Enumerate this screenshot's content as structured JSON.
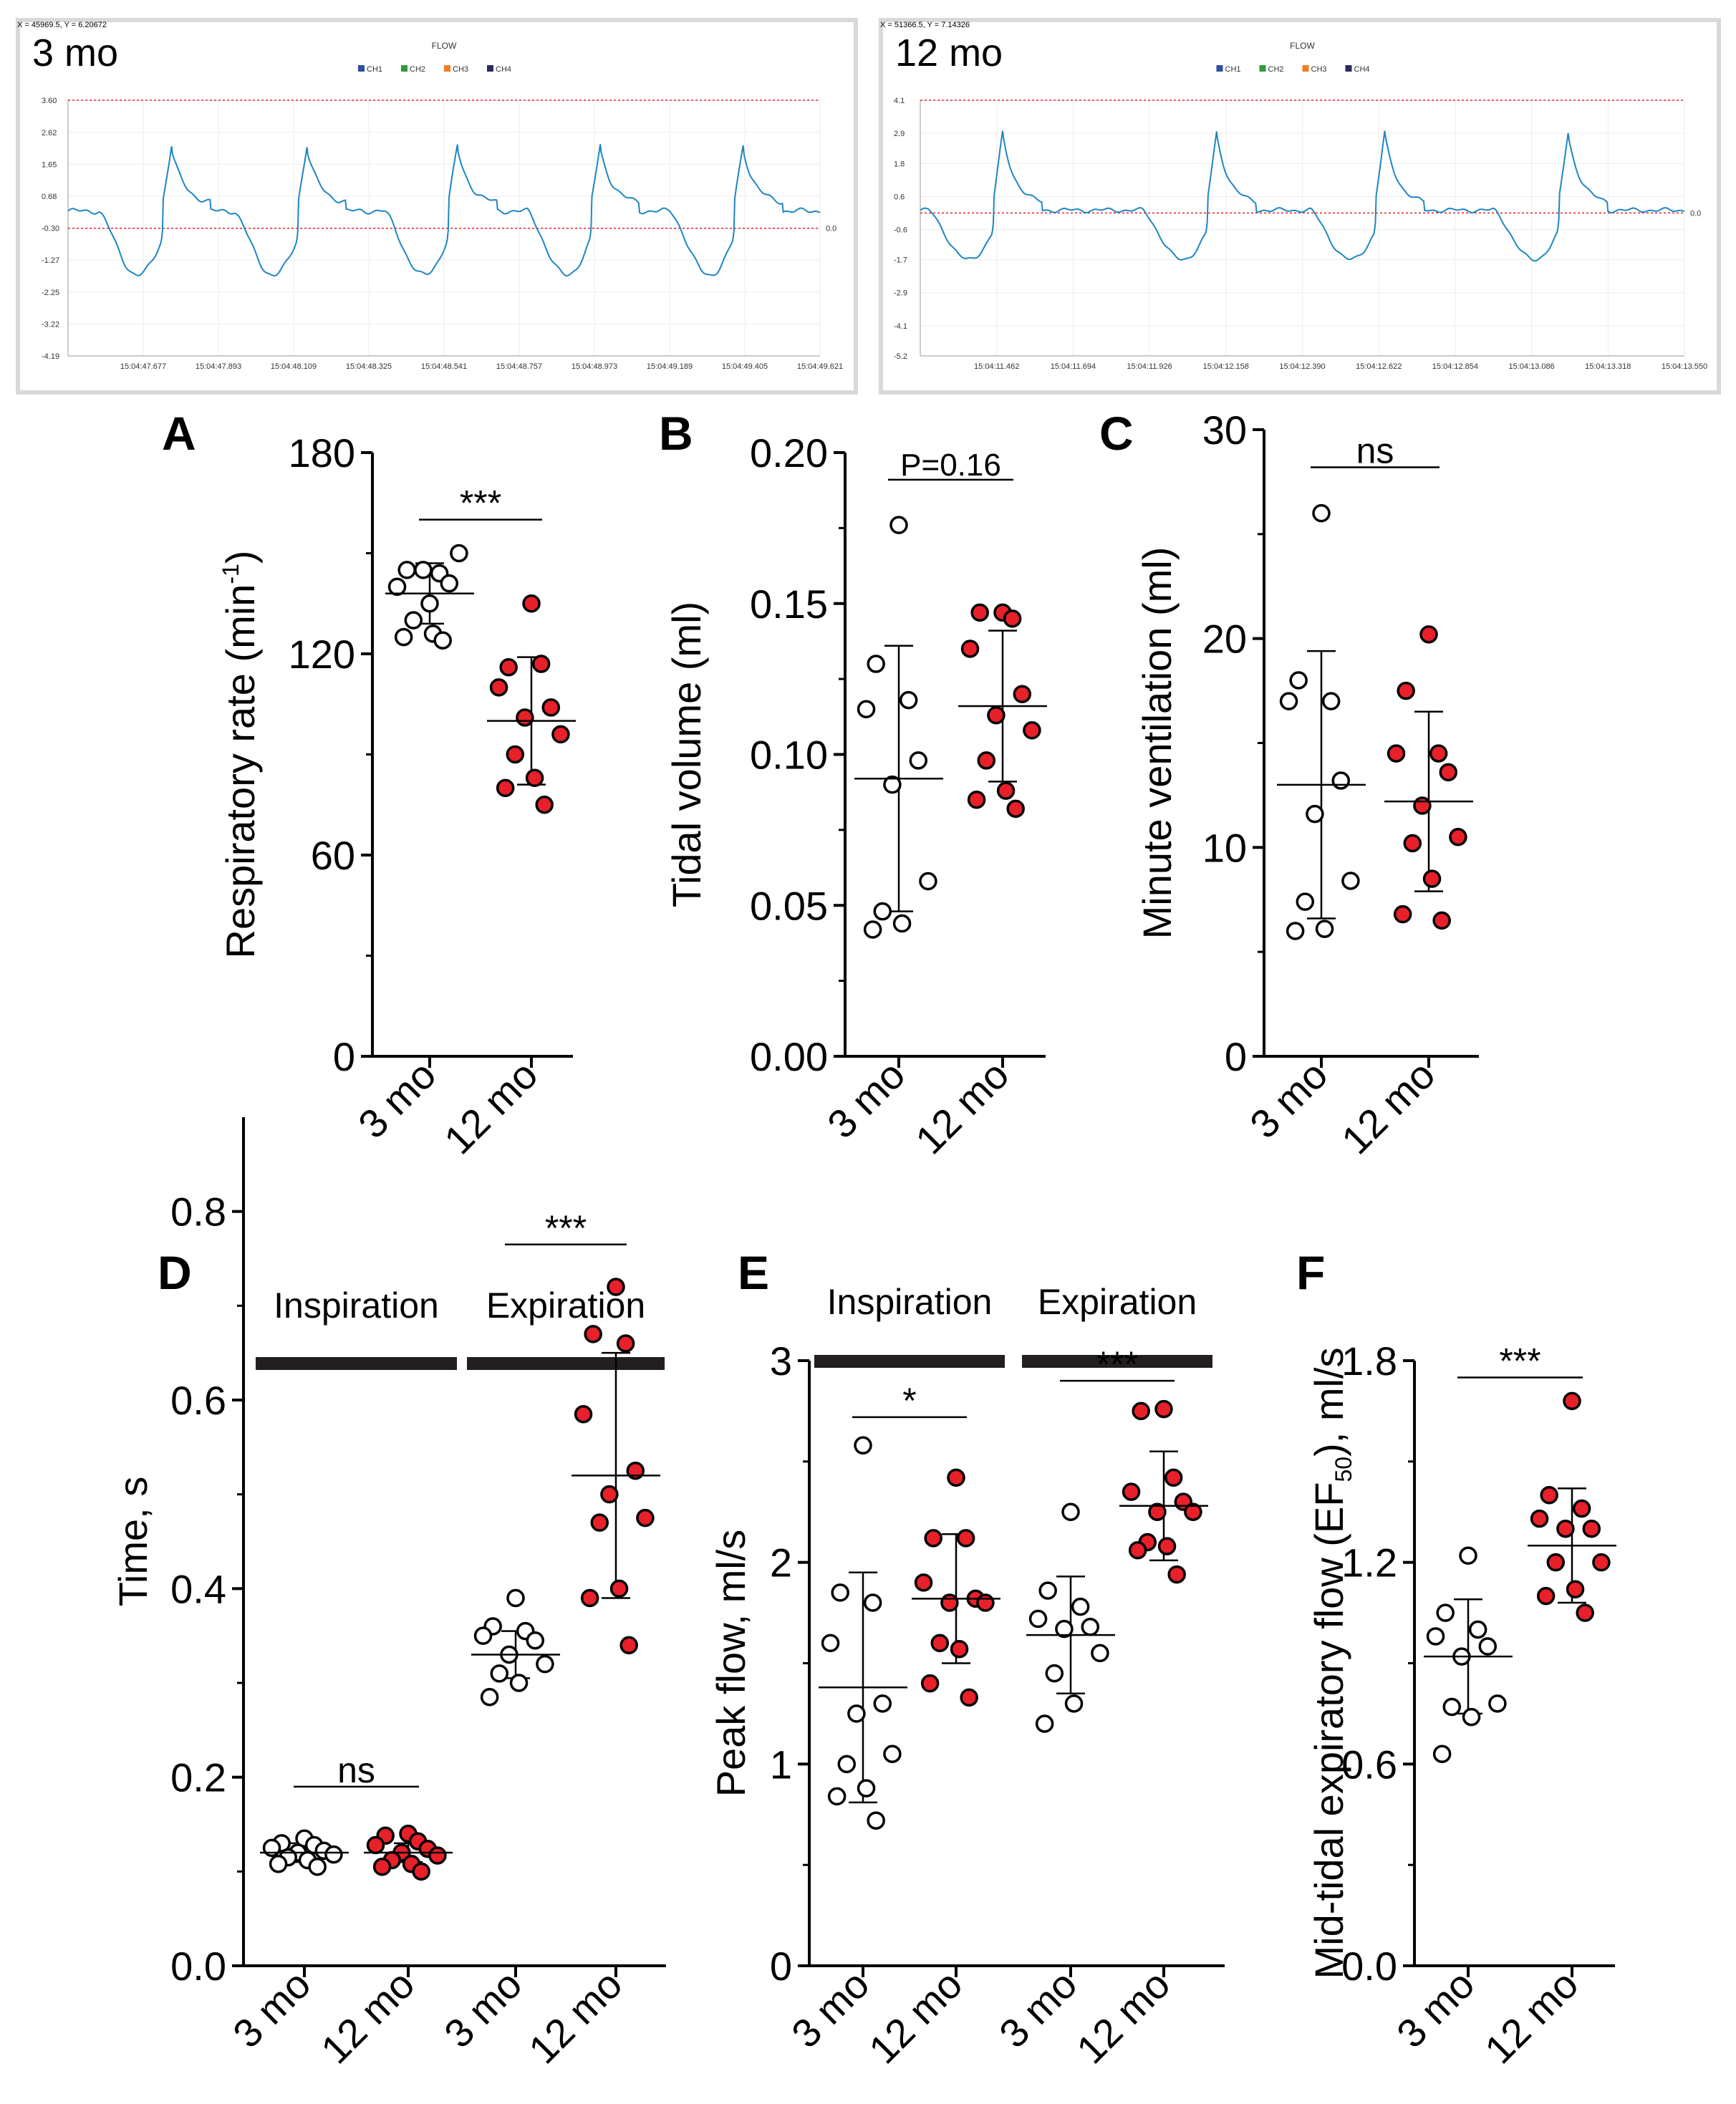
{
  "colors": {
    "red": "#e8202a",
    "trace": "#1f86c3",
    "ref": "#e8202a",
    "axis": "#000000",
    "bar": "#231f20",
    "frame": "#d9d9d9"
  },
  "chart_data": [
    {
      "id": "trace1",
      "type": "line",
      "title": "FLOW",
      "corner_label": "3 mo",
      "readout": "X = 45969.5, Y = 6.20672",
      "legend": [
        "CH1",
        "CH2",
        "CH3",
        "CH4"
      ],
      "legend_colors": [
        "#2d4fa3",
        "#2e9b3c",
        "#f07f22",
        "#2b2b5e"
      ],
      "yticks": [
        "3.60",
        "2.62",
        "1.65",
        "0.68",
        "-0.30",
        "-1.27",
        "-2.25",
        "-3.22",
        "-4.19"
      ],
      "ytick_values": [
        3.6,
        2.62,
        1.65,
        0.68,
        -0.3,
        -1.27,
        -2.25,
        -3.22,
        -4.19
      ],
      "xticks": [
        "15:04:47.677",
        "15:04:47.893",
        "15:04:48.109",
        "15:04:48.325",
        "15:04:48.541",
        "15:04:48.757",
        "15:04:48.973",
        "15:04:49.189",
        "15:04:49.405",
        "15:04:49.621"
      ],
      "ref_lines": [
        3.6,
        -0.3
      ],
      "zero_label": "0.0",
      "ylim": [
        -4.19,
        3.6
      ],
      "breaths": [
        0.13,
        0.31,
        0.51,
        0.7,
        0.89
      ],
      "peak": 1.65,
      "trough": -1.95,
      "baseline": 0.45
    },
    {
      "id": "trace2",
      "type": "line",
      "title": "FLOW",
      "corner_label": "12 mo",
      "readout": "X = 51366.5, Y = 7.14326",
      "legend": [
        "CH1",
        "CH2",
        "CH3",
        "CH4"
      ],
      "legend_colors": [
        "#2d4fa3",
        "#2e9b3c",
        "#f07f22",
        "#2b2b5e"
      ],
      "yticks": [
        "4.1",
        "2.9",
        "1.8",
        "0.6",
        "-0.6",
        "-1.7",
        "-2.9",
        "-4.1",
        "-5.2"
      ],
      "ytick_values": [
        4.1,
        2.9,
        1.8,
        0.6,
        -0.6,
        -1.7,
        -2.9,
        -4.1,
        -5.2
      ],
      "xticks": [
        "15:04:11.462",
        "15:04:11.694",
        "15:04:11.926",
        "15:04:12.158",
        "15:04:12.390",
        "15:04:12.622",
        "15:04:12.854",
        "15:04:13.086",
        "15:04:13.318",
        "15:04:13.550"
      ],
      "ref_lines": [
        4.1,
        0.0
      ],
      "zero_label": "0.0",
      "ylim": [
        -5.2,
        4.1
      ],
      "breaths": [
        0.1,
        0.38,
        0.6,
        0.84
      ],
      "peak": 2.5,
      "trough": -1.8,
      "baseline": 0.2
    },
    {
      "id": "A",
      "type": "scatter",
      "panel": "A",
      "ylabel": "Respiratory rate (min",
      "ylabel_sup": "-1",
      "ylabel_tail": ")",
      "ylim": [
        0,
        180
      ],
      "yticks": [
        0,
        60,
        120,
        180
      ],
      "ytick_labels": [
        "0",
        "60",
        "120",
        "180"
      ],
      "categories": [
        "3 mo",
        "12 mo"
      ],
      "groups": [
        {
          "name": "3 mo",
          "fill": "white",
          "points": [
            135,
            145,
            144,
            140,
            141,
            145,
            150,
            130,
            126,
            125,
            124
          ],
          "mean": 138,
          "sd": 9
        },
        {
          "name": "12 mo",
          "fill": "red",
          "points": [
            135,
            116,
            117,
            110,
            104,
            101,
            96,
            90,
            83,
            80,
            75
          ],
          "mean": 100,
          "sd": 19
        }
      ],
      "sig": [
        {
          "label": "***",
          "from": 0,
          "to": 1,
          "y": 160
        }
      ]
    },
    {
      "id": "B",
      "type": "scatter",
      "panel": "B",
      "ylabel": "Tidal volume (ml)",
      "ylim": [
        0,
        0.2
      ],
      "yticks": [
        0,
        0.05,
        0.1,
        0.15,
        0.2
      ],
      "ytick_labels": [
        "0.00",
        "0.05",
        "0.10",
        "0.15",
        "0.20"
      ],
      "categories": [
        "3 mo",
        "12 mo"
      ],
      "groups": [
        {
          "name": "3 mo",
          "fill": "white",
          "points": [
            0.176,
            0.13,
            0.118,
            0.115,
            0.098,
            0.09,
            0.058,
            0.048,
            0.044,
            0.042
          ],
          "mean": 0.092,
          "sd": 0.044
        },
        {
          "name": "12 mo",
          "fill": "red",
          "points": [
            0.147,
            0.147,
            0.145,
            0.135,
            0.12,
            0.113,
            0.108,
            0.098,
            0.088,
            0.085,
            0.082
          ],
          "mean": 0.116,
          "sd": 0.025
        },
        {
          "name": "",
          "fill": "none",
          "points": [],
          "mean": null,
          "sd": null
        }
      ],
      "sig": [
        {
          "label": "P=0.16",
          "from": 0,
          "to": 1,
          "y": 0.191
        }
      ]
    },
    {
      "id": "C",
      "type": "scatter",
      "panel": "C",
      "ylabel": "Minute ventilation (ml)",
      "ylim": [
        0,
        30
      ],
      "yticks": [
        0,
        10,
        20,
        30
      ],
      "ytick_labels": [
        "0",
        "10",
        "20",
        "30"
      ],
      "categories": [
        "3 mo",
        "12 mo"
      ],
      "groups": [
        {
          "name": "3 mo",
          "fill": "white",
          "points": [
            26,
            18,
            17,
            17,
            13.2,
            11.6,
            8.4,
            7.4,
            6.1,
            6.0
          ],
          "mean": 13.0,
          "sd": 6.4
        },
        {
          "name": "12 mo",
          "fill": "red",
          "points": [
            20.2,
            17.5,
            14.5,
            14.5,
            13.6,
            12.0,
            10.5,
            10.2,
            8.5,
            6.8,
            6.5
          ],
          "mean": 12.2,
          "sd": 4.3
        }
      ],
      "sig": [
        {
          "label": "ns",
          "from": 0,
          "to": 1,
          "y": 28.2
        }
      ]
    },
    {
      "id": "D",
      "type": "scatter",
      "panel": "D",
      "ylabel": "Time, s",
      "ylim": [
        0,
        0.9
      ],
      "yticks": [
        0,
        0.2,
        0.4,
        0.6,
        0.8
      ],
      "ytick_labels": [
        "0.0",
        "0.2",
        "0.4",
        "0.6",
        "0.8"
      ],
      "categories": [
        "3 mo",
        "12 mo",
        "3 mo",
        "12 mo"
      ],
      "bars": [
        {
          "label": "Inspiration",
          "from": 0,
          "to": 1
        },
        {
          "label": "Expiration",
          "from": 2,
          "to": 3
        }
      ],
      "groups": [
        {
          "name": "3 mo",
          "fill": "white",
          "points": [
            0.135,
            0.13,
            0.128,
            0.125,
            0.122,
            0.12,
            0.118,
            0.115,
            0.112,
            0.108,
            0.105
          ],
          "mean": 0.12,
          "sd": 0.01
        },
        {
          "name": "12 mo",
          "fill": "red",
          "points": [
            0.14,
            0.138,
            0.132,
            0.128,
            0.124,
            0.12,
            0.117,
            0.112,
            0.108,
            0.105,
            0.1
          ],
          "mean": 0.12,
          "sd": 0.01
        },
        {
          "name": "3 mo",
          "fill": "white",
          "points": [
            0.39,
            0.36,
            0.355,
            0.35,
            0.345,
            0.33,
            0.32,
            0.31,
            0.3,
            0.285
          ],
          "mean": 0.33,
          "sd": 0.025
        },
        {
          "name": "12 mo",
          "fill": "red",
          "points": [
            0.72,
            0.67,
            0.66,
            0.585,
            0.525,
            0.5,
            0.475,
            0.47,
            0.4,
            0.39,
            0.34
          ],
          "mean": 0.52,
          "sd": 0.13
        }
      ],
      "sig": [
        {
          "label": "ns",
          "from": 0,
          "to": 1,
          "y": 0.19
        },
        {
          "label": "***",
          "from": 2,
          "to": 3,
          "y": 0.765
        }
      ]
    },
    {
      "id": "E",
      "type": "scatter",
      "panel": "E",
      "ylabel": "Peak flow, ml/s",
      "ylim": [
        0,
        3
      ],
      "yticks": [
        0,
        1,
        2,
        3
      ],
      "ytick_labels": [
        "0",
        "1",
        "2",
        "3"
      ],
      "categories": [
        "3 mo",
        "12 mo",
        "3 mo",
        "12 mo"
      ],
      "bars": [
        {
          "label": "Inspiration",
          "from": 0,
          "to": 1
        },
        {
          "label": "Expiration",
          "from": 2,
          "to": 3
        }
      ],
      "groups": [
        {
          "name": "3 mo",
          "fill": "white",
          "points": [
            2.58,
            1.85,
            1.8,
            1.6,
            1.3,
            1.25,
            1.05,
            1.0,
            0.88,
            0.84,
            0.72
          ],
          "mean": 1.38,
          "sd": 0.57
        },
        {
          "name": "12 mo",
          "fill": "red",
          "points": [
            2.42,
            2.12,
            2.12,
            1.9,
            1.82,
            1.8,
            1.8,
            1.6,
            1.57,
            1.4,
            1.33
          ],
          "mean": 1.82,
          "sd": 0.32
        },
        {
          "name": "3 mo",
          "fill": "white",
          "points": [
            2.25,
            1.86,
            1.78,
            1.72,
            1.68,
            1.67,
            1.55,
            1.45,
            1.3,
            1.2
          ],
          "mean": 1.64,
          "sd": 0.29
        },
        {
          "name": "12 mo",
          "fill": "red",
          "points": [
            2.76,
            2.75,
            2.42,
            2.35,
            2.3,
            2.25,
            2.25,
            2.1,
            2.08,
            2.06,
            1.94
          ],
          "mean": 2.28,
          "sd": 0.27
        }
      ],
      "sig": [
        {
          "label": "*",
          "from": 0,
          "to": 1,
          "y": 2.72
        },
        {
          "label": "***",
          "from": 2,
          "to": 3,
          "y": 2.9
        }
      ]
    },
    {
      "id": "F",
      "type": "scatter",
      "panel": "F",
      "ylabel": "Mid-tidal expiratory flow (EF",
      "ylabel_sub": "50",
      "ylabel_tail": "), ml/s",
      "ylim": [
        0,
        1.8
      ],
      "yticks": [
        0,
        0.6,
        1.2,
        1.8
      ],
      "ytick_labels": [
        "0.0",
        "0.6",
        "1.2",
        "1.8"
      ],
      "categories": [
        "3 mo",
        "12 mo"
      ],
      "groups": [
        {
          "name": "3 mo",
          "fill": "white",
          "points": [
            1.22,
            1.05,
            1.0,
            0.98,
            0.95,
            0.92,
            0.78,
            0.77,
            0.74,
            0.63
          ],
          "mean": 0.92,
          "sd": 0.17
        },
        {
          "name": "12 mo",
          "fill": "red",
          "points": [
            1.68,
            1.4,
            1.36,
            1.33,
            1.3,
            1.3,
            1.2,
            1.2,
            1.12,
            1.1,
            1.05
          ],
          "mean": 1.25,
          "sd": 0.17
        }
      ],
      "sig": [
        {
          "label": "***",
          "from": 0,
          "to": 1,
          "y": 1.75
        }
      ]
    }
  ]
}
